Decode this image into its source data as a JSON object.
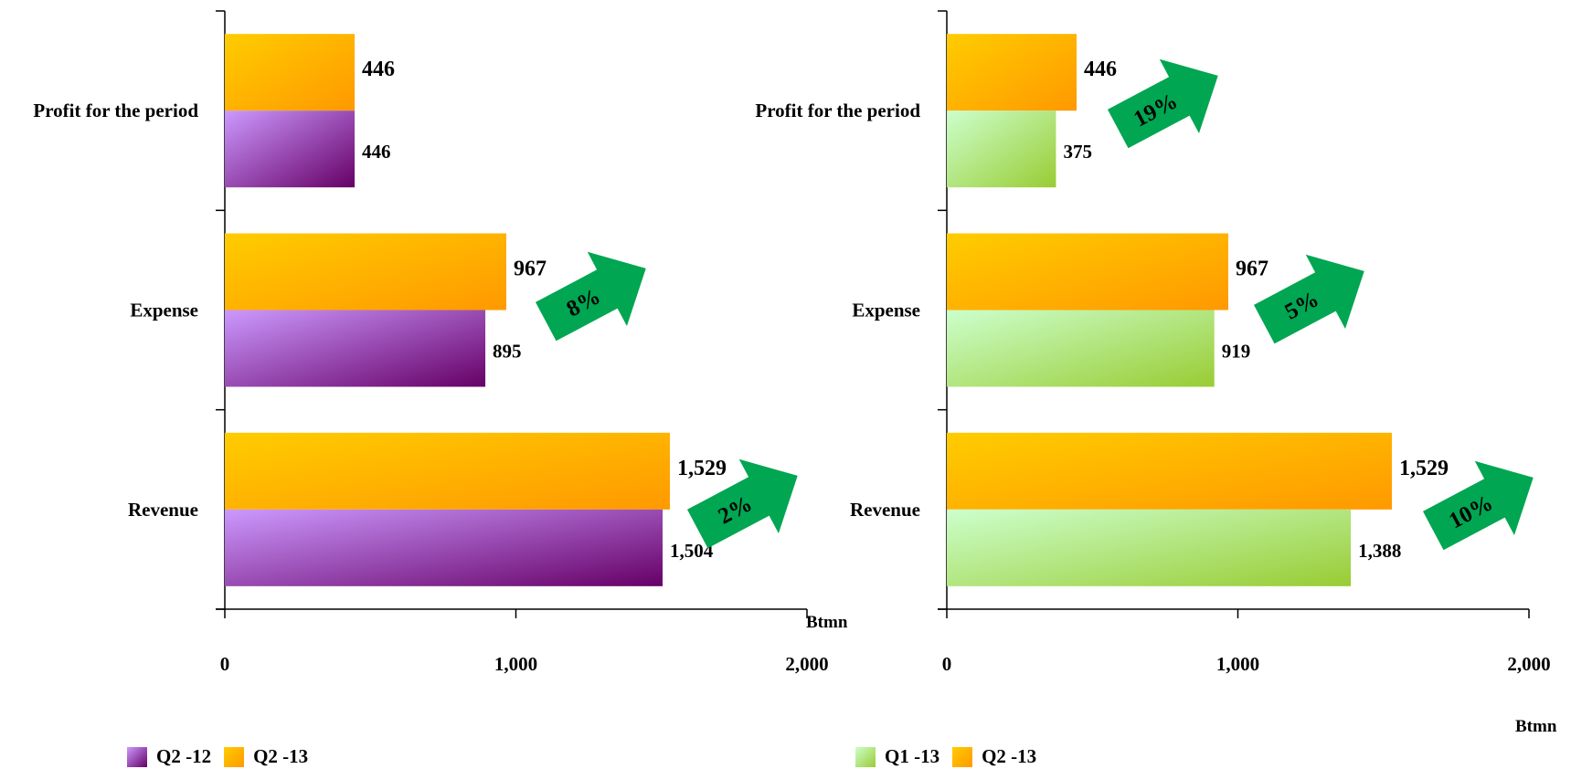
{
  "chart_data": [
    {
      "type": "bar",
      "orientation": "horizontal",
      "categories": [
        "Profit for the period",
        "Expense",
        "Revenue"
      ],
      "series": [
        {
          "name": "Q2 -12",
          "values": [
            446,
            895,
            1504
          ],
          "color": "purple-gradient"
        },
        {
          "name": "Q2 -13",
          "values": [
            446,
            967,
            1529
          ],
          "color": "orange-gradient"
        }
      ],
      "data_labels": {
        "Q2 -12": [
          "446",
          "895",
          "1,504"
        ],
        "Q2 -13": [
          "446",
          "967",
          "1,529"
        ]
      },
      "growth": [
        null,
        "8%",
        "2%"
      ],
      "xlim": [
        0,
        2000
      ],
      "xticks": [
        "0",
        "1,000",
        "2,000"
      ],
      "xlabel": "Btmn",
      "legend": [
        "Q2 -12",
        "Q2 -13"
      ]
    },
    {
      "type": "bar",
      "orientation": "horizontal",
      "categories": [
        "Profit for the period",
        "Expense",
        "Revenue"
      ],
      "series": [
        {
          "name": "Q1 -13",
          "values": [
            375,
            919,
            1388
          ],
          "color": "green-gradient"
        },
        {
          "name": "Q2 -13",
          "values": [
            446,
            967,
            1529
          ],
          "color": "orange-gradient"
        }
      ],
      "data_labels": {
        "Q1 -13": [
          "375",
          "919",
          "1,388"
        ],
        "Q2 -13": [
          "446",
          "967",
          "1,529"
        ]
      },
      "growth": [
        "19%",
        "5%",
        "10%"
      ],
      "xlim": [
        0,
        2000
      ],
      "xticks": [
        "0",
        "1,000",
        "2,000"
      ],
      "xlabel": "Btmn",
      "legend": [
        "Q1 -13",
        "Q2 -13"
      ]
    }
  ],
  "colors": {
    "arrow": "#00a651",
    "purple_light": "#cc99ff",
    "purple_dark": "#660066",
    "orange_light": "#ffcc00",
    "orange_dark": "#ff9900",
    "green_light": "#ccffcc",
    "green_dark": "#99cc33"
  }
}
